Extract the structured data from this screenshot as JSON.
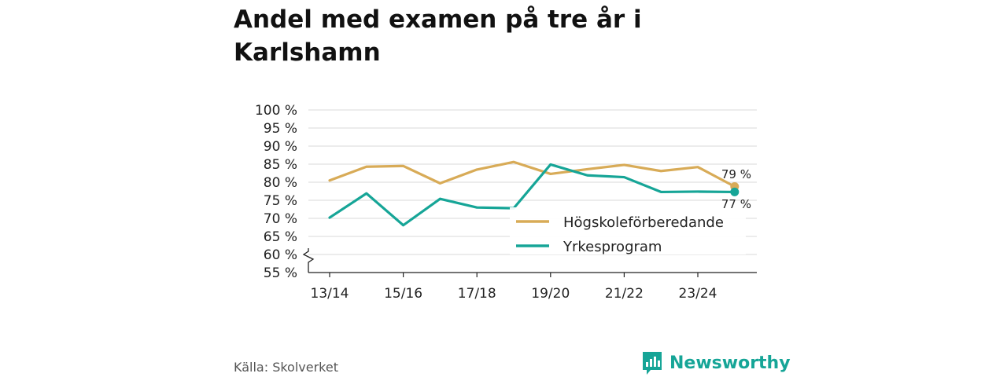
{
  "title": "Andel med examen på tre år i Karlshamn",
  "source": "Källa: Skolverket",
  "brand": "Newsworthy",
  "colors": {
    "hogskole": "#d8ab57",
    "yrke": "#16a597",
    "brand": "#16a597"
  },
  "chart_data": {
    "type": "line",
    "categories": [
      "13/14",
      "14/15",
      "15/16",
      "16/17",
      "17/18",
      "18/19",
      "19/20",
      "20/21",
      "21/22",
      "22/23",
      "23/24",
      "24/25"
    ],
    "x_tick_labels": [
      "13/14",
      "15/16",
      "17/18",
      "19/20",
      "21/22",
      "23/24"
    ],
    "y_ticks": [
      "55 %",
      "60 %",
      "65 %",
      "70 %",
      "75 %",
      "80 %",
      "85 %",
      "90 %",
      "95 %",
      "100 %"
    ],
    "ylim": [
      55,
      100
    ],
    "y_axis_break": true,
    "grid": true,
    "legend_placement": "bottom-right",
    "series": [
      {
        "name": "Högskoleförberedande",
        "color": "#d8ab57",
        "values": [
          80.5,
          84.3,
          84.5,
          79.7,
          83.5,
          85.6,
          82.3,
          83.6,
          84.8,
          83.1,
          84.2,
          78.8
        ],
        "end_label": "79 %"
      },
      {
        "name": "Yrkesprogram",
        "color": "#16a597",
        "values": [
          70.2,
          76.9,
          68.1,
          75.4,
          73.0,
          72.8,
          84.9,
          81.9,
          81.4,
          77.3,
          77.4,
          77.3
        ],
        "end_label": "77 %"
      }
    ]
  }
}
